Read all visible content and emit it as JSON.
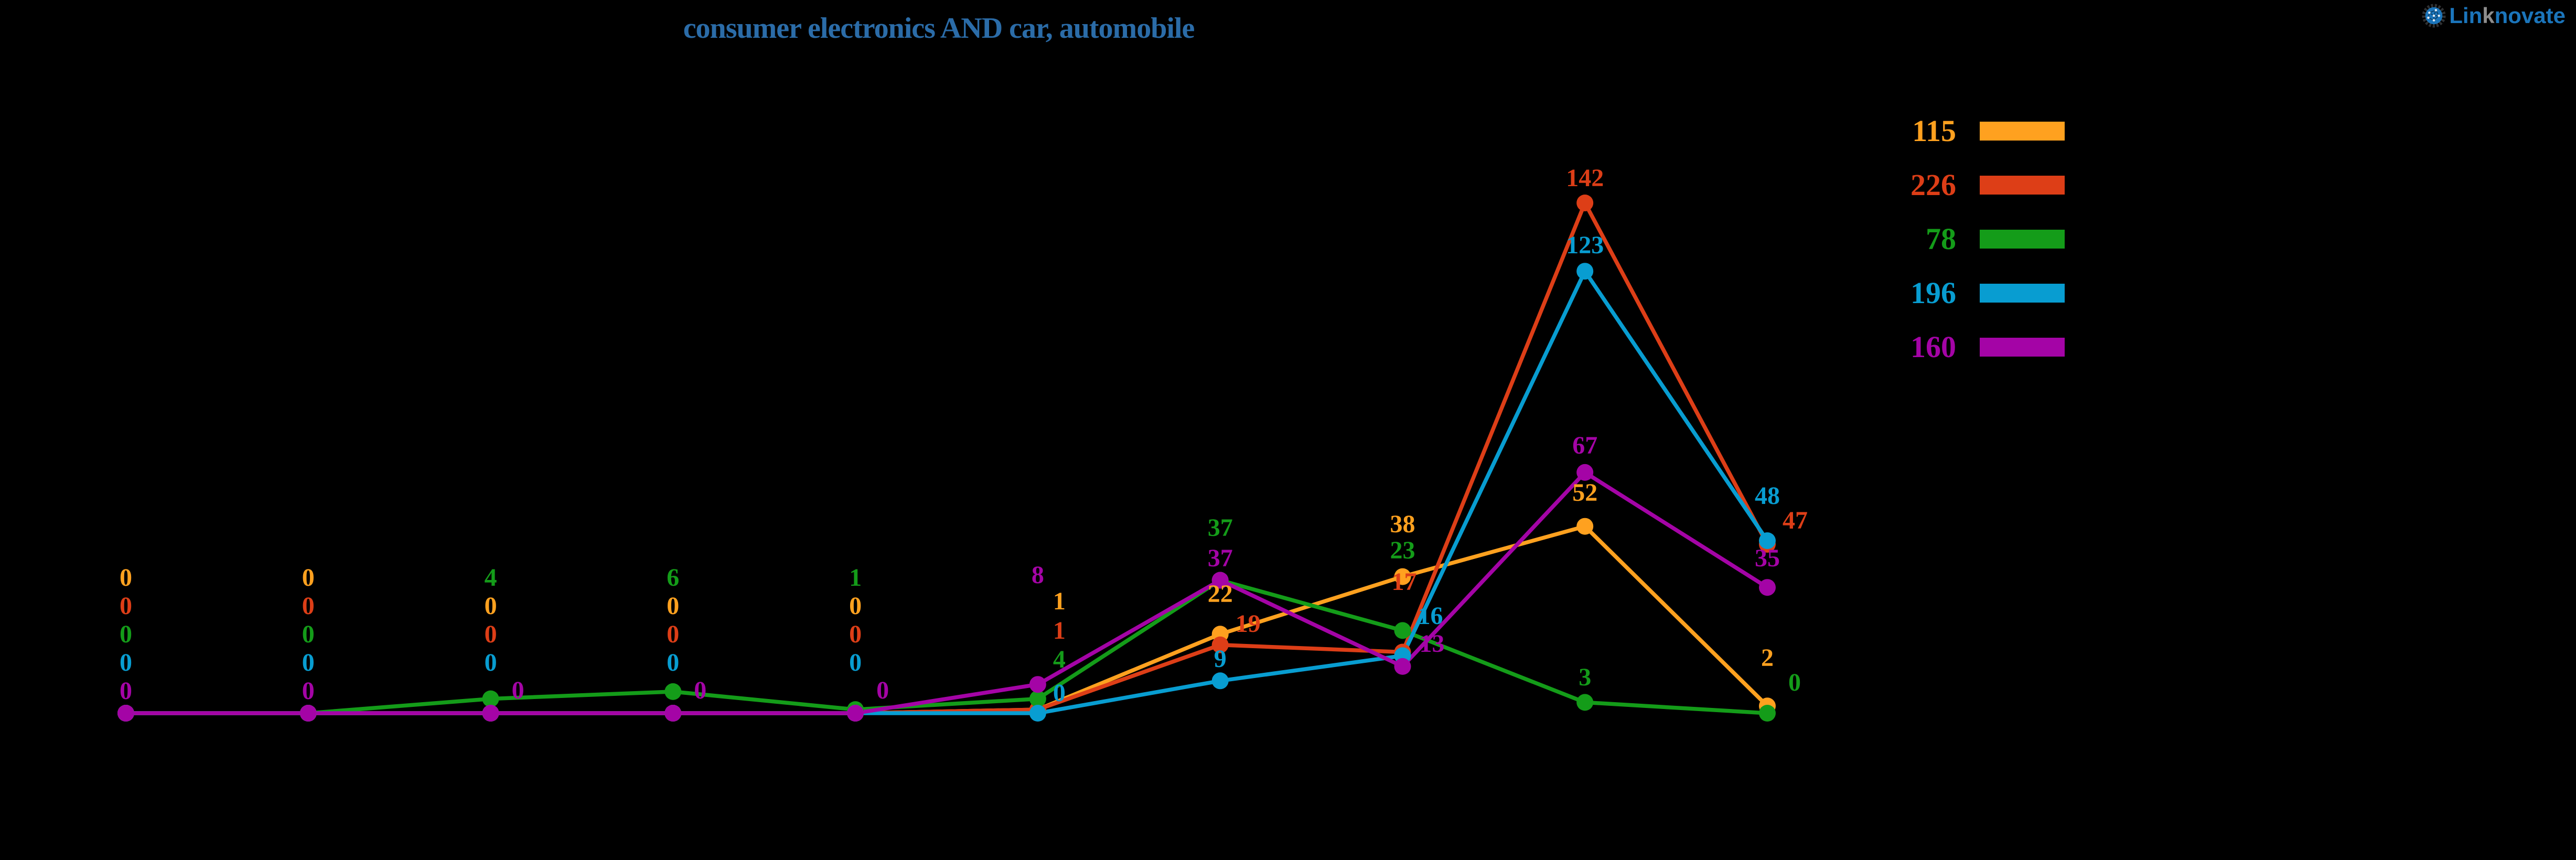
{
  "title": {
    "text": "consumer electronics AND car, automobile",
    "color": "#2B6CA8"
  },
  "logo": {
    "part_lin": "Lin",
    "part_k": "k",
    "part_novate": "novate",
    "blue": "#1B75BB",
    "gray": "#8E8E8E",
    "gear_dark": "#2F3133"
  },
  "background": "#000000",
  "chart_data": {
    "type": "line",
    "x_count": 10,
    "x_tick_labels": [],
    "x_axis_visible": false,
    "y_axis_visible": false,
    "grid": false,
    "y_range": [
      0,
      142
    ],
    "legend_position": "right",
    "point_labels_visible": true,
    "series": [
      {
        "legend_label": "115",
        "color": "#FFA11F",
        "values": [
          0,
          0,
          0,
          0,
          0,
          1,
          22,
          38,
          52,
          2
        ]
      },
      {
        "legend_label": "226",
        "color": "#DD3E17",
        "values": [
          0,
          0,
          0,
          0,
          0,
          1,
          19,
          17,
          142,
          47
        ]
      },
      {
        "legend_label": "78",
        "color": "#149C19",
        "values": [
          0,
          0,
          4,
          6,
          1,
          4,
          37,
          23,
          3,
          0
        ]
      },
      {
        "legend_label": "196",
        "color": "#089DD1",
        "values": [
          0,
          0,
          0,
          0,
          0,
          0,
          9,
          16,
          123,
          48
        ]
      },
      {
        "legend_label": "160",
        "color": "#A404A6",
        "values": [
          0,
          0,
          0,
          0,
          0,
          8,
          37,
          13,
          67,
          35
        ]
      }
    ]
  }
}
